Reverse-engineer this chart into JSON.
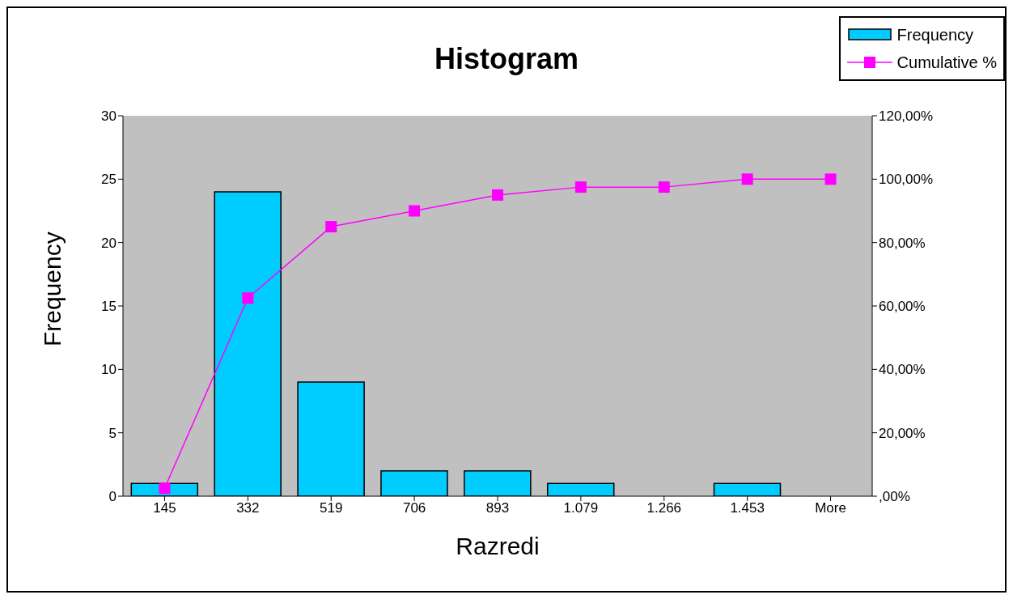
{
  "chart_data": {
    "type": "bar",
    "title": "Histogram",
    "xlabel": "Razredi",
    "ylabel": "Frequency",
    "categories": [
      "145",
      "332",
      "519",
      "706",
      "893",
      "1.079",
      "1.266",
      "1.453",
      "More"
    ],
    "series": [
      {
        "name": "Frequency",
        "color": "#00ccff",
        "values": [
          1,
          24,
          9,
          2,
          2,
          1,
          0,
          1,
          0
        ]
      },
      {
        "name": "Cumulative %",
        "type": "line",
        "axis": "y2",
        "color": "#ff00ff",
        "marker": "square",
        "line_style": "solid",
        "values": [
          2.5,
          62.5,
          85,
          90,
          95,
          97.5,
          97.5,
          100,
          100
        ]
      }
    ],
    "ylim": [
      0,
      30
    ],
    "yticks": [
      0,
      5,
      10,
      15,
      20,
      25,
      30
    ],
    "y2lim": [
      0,
      120
    ],
    "y2ticks": [
      {
        "value": 0,
        "label": ",00%"
      },
      {
        "value": 20,
        "label": "20,00%"
      },
      {
        "value": 40,
        "label": "40,00%"
      },
      {
        "value": 60,
        "label": "60,00%"
      },
      {
        "value": 80,
        "label": "80,00%"
      },
      {
        "value": 100,
        "label": "100,00%"
      },
      {
        "value": 120,
        "label": "120,00%"
      }
    ],
    "grid": false,
    "legend": "top right"
  }
}
